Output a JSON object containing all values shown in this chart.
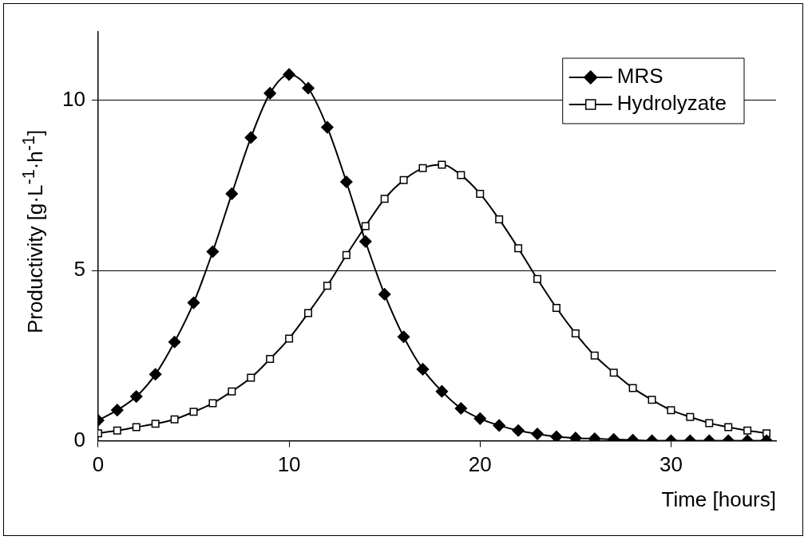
{
  "chart_data": {
    "type": "line",
    "xlabel": "Time [hours]",
    "ylabel": "Productivity [g·L$^{-1}$·h$^{-1}$]",
    "x": [
      0,
      1,
      2,
      3,
      4,
      5,
      6,
      7,
      8,
      9,
      10,
      11,
      12,
      13,
      14,
      15,
      16,
      17,
      18,
      19,
      20,
      21,
      22,
      23,
      24,
      25,
      26,
      27,
      28,
      29,
      30,
      31,
      32,
      33,
      34,
      35
    ],
    "series": [
      {
        "name": "MRS",
        "color": "#000000",
        "marker": "diamond",
        "values": [
          0.6,
          0.9,
          1.3,
          1.95,
          2.9,
          4.05,
          5.55,
          7.25,
          8.9,
          10.2,
          10.75,
          10.35,
          9.2,
          7.6,
          5.85,
          4.3,
          3.05,
          2.1,
          1.45,
          0.95,
          0.65,
          0.45,
          0.3,
          0.2,
          0.12,
          0.08,
          0.06,
          0.04,
          0.02,
          0,
          0,
          0,
          0,
          0,
          0,
          0
        ]
      },
      {
        "name": "Hydrolyzate",
        "color": "#000000",
        "marker": "square",
        "values": [
          0.22,
          0.3,
          0.4,
          0.5,
          0.63,
          0.85,
          1.1,
          1.45,
          1.85,
          2.4,
          3.0,
          3.75,
          4.55,
          5.45,
          6.3,
          7.1,
          7.65,
          8.0,
          8.1,
          7.8,
          7.25,
          6.5,
          5.65,
          4.75,
          3.9,
          3.15,
          2.5,
          2.0,
          1.55,
          1.2,
          0.9,
          0.7,
          0.52,
          0.4,
          0.3,
          0.22
        ]
      }
    ],
    "xlim": [
      0,
      35.5
    ],
    "xticks": [
      0,
      10,
      20,
      30
    ],
    "ylim": [
      0,
      12
    ],
    "yticks": [
      0,
      5,
      10
    ],
    "grid": "y",
    "legend": "top right"
  }
}
